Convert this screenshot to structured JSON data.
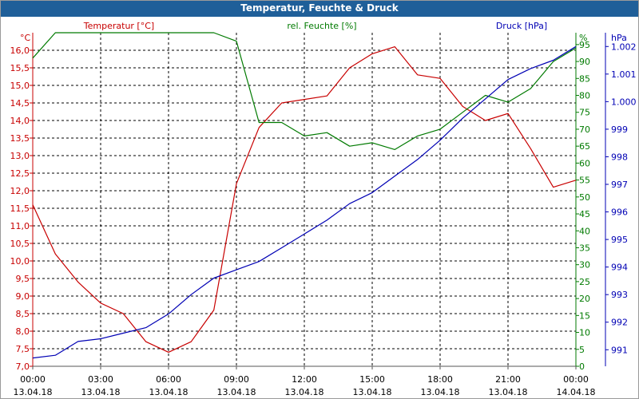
{
  "window": {
    "title": "Temperatur, Feuchte & Druck"
  },
  "colors": {
    "temperature": "#c80000",
    "humidity": "#007a00",
    "pressure": "#0000b4",
    "grid": "#000000",
    "titlebar": "#1f5f99"
  },
  "chart_data": {
    "type": "line",
    "title": "Temperatur, Feuchte & Druck",
    "grid": true,
    "legend_placement": "top",
    "x_axis": {
      "range": [
        "13.04.18 00:00",
        "14.04.18 00:00"
      ],
      "ticks": [
        {
          "time": "00:00",
          "date": "13.04.18"
        },
        {
          "time": "03:00",
          "date": "13.04.18"
        },
        {
          "time": "06:00",
          "date": "13.04.18"
        },
        {
          "time": "09:00",
          "date": "13.04.18"
        },
        {
          "time": "12:00",
          "date": "13.04.18"
        },
        {
          "time": "15:00",
          "date": "13.04.18"
        },
        {
          "time": "18:00",
          "date": "13.04.18"
        },
        {
          "time": "21:00",
          "date": "13.04.18"
        },
        {
          "time": "00:00",
          "date": "14.04.18"
        }
      ]
    },
    "axes": {
      "temperature": {
        "label": "Temperatur [°C]",
        "unit": "°C",
        "range": [
          7.0,
          16.5
        ],
        "ticks": [
          "7,0",
          "7,5",
          "8,0",
          "8,5",
          "9,0",
          "9,5",
          "10,0",
          "10,5",
          "11,0",
          "11,5",
          "12,0",
          "12,5",
          "13,0",
          "13,5",
          "14,0",
          "14,5",
          "15,0",
          "15,5",
          "16,0"
        ]
      },
      "humidity": {
        "label": "rel. Feuchte [%]",
        "unit": "%",
        "range": [
          0,
          98.5
        ],
        "ticks": [
          "0",
          "5",
          "10",
          "15",
          "20",
          "25",
          "30",
          "35",
          "40",
          "45",
          "50",
          "55",
          "60",
          "65",
          "70",
          "75",
          "80",
          "85",
          "90",
          "95"
        ]
      },
      "pressure": {
        "label": "Druck [hPa]",
        "unit": "hPa",
        "range": [
          990.4,
          1002.5
        ],
        "ticks": [
          "991",
          "992",
          "993",
          "994",
          "995",
          "996",
          "997",
          "998",
          "999",
          "1.000",
          "1.001",
          "1.002"
        ]
      }
    },
    "x": [
      "00:00",
      "01:00",
      "02:00",
      "03:00",
      "04:00",
      "05:00",
      "06:00",
      "07:00",
      "08:00",
      "09:00",
      "10:00",
      "11:00",
      "12:00",
      "13:00",
      "14:00",
      "15:00",
      "16:00",
      "17:00",
      "18:00",
      "19:00",
      "20:00",
      "21:00",
      "22:00",
      "23:00",
      "24:00"
    ],
    "series": [
      {
        "name": "Temperatur [°C]",
        "axis": "temperature",
        "values": [
          11.6,
          10.2,
          9.4,
          8.8,
          8.5,
          7.7,
          7.4,
          7.7,
          8.6,
          12.2,
          13.8,
          14.5,
          14.6,
          14.7,
          15.5,
          15.9,
          16.1,
          15.3,
          15.2,
          14.4,
          14.0,
          14.2,
          13.2,
          12.1,
          12.3
        ]
      },
      {
        "name": "rel. Feuchte [%]",
        "axis": "humidity",
        "values": [
          91,
          99,
          99,
          99,
          99,
          99,
          99,
          99,
          99,
          96,
          72,
          72,
          68,
          69,
          65,
          66,
          64,
          68,
          70,
          75,
          80,
          78,
          82,
          90,
          94
        ]
      },
      {
        "name": "Druck [hPa]",
        "axis": "pressure",
        "values": [
          990.7,
          990.8,
          991.3,
          991.4,
          991.6,
          991.8,
          992.3,
          993.0,
          993.6,
          993.9,
          994.2,
          994.7,
          995.2,
          995.7,
          996.3,
          996.7,
          997.3,
          997.9,
          998.6,
          999.4,
          1000.1,
          1000.8,
          1001.2,
          1001.5,
          1002.0
        ]
      }
    ]
  }
}
